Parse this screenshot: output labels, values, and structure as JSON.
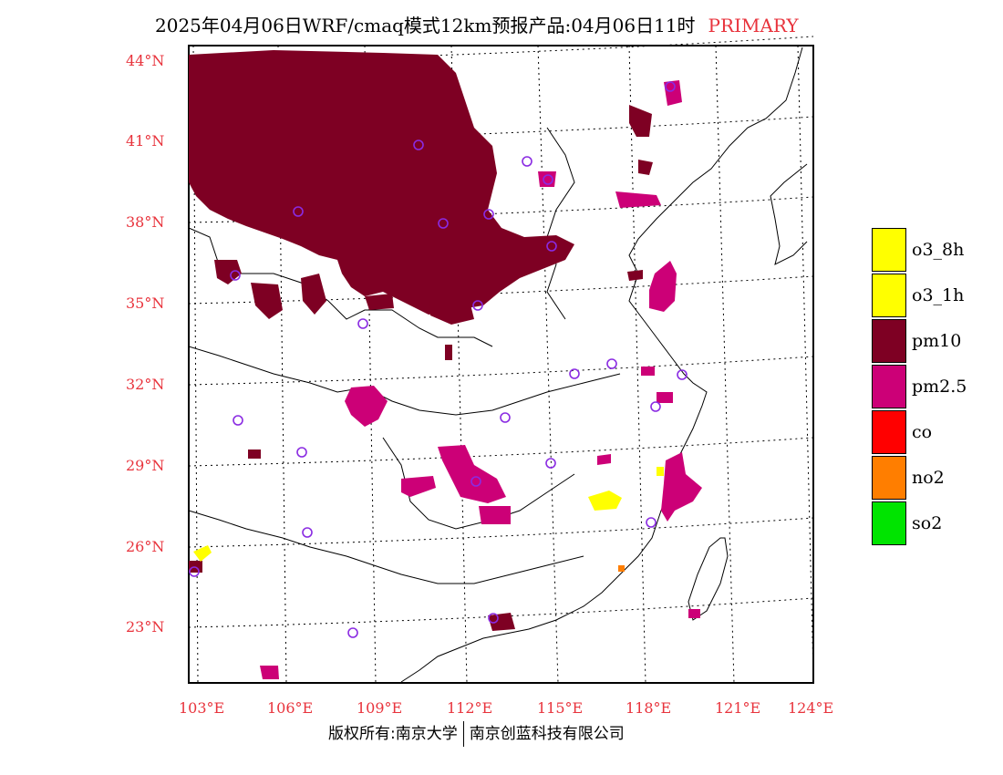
{
  "header": {
    "title": "2025年04月06日WRF/cmaq模式12km预报产品:04月06日11时",
    "mode": "PRIMARY"
  },
  "axes": {
    "lat_labels": [
      "44°N",
      "41°N",
      "38°N",
      "35°N",
      "32°N",
      "29°N",
      "26°N",
      "23°N"
    ],
    "lon_labels": [
      "103°E",
      "106°E",
      "109°E",
      "112°E",
      "115°E",
      "118°E",
      "121°E",
      "124°E"
    ]
  },
  "legend": [
    {
      "label": "o3_8h",
      "color": "#ffff00"
    },
    {
      "label": "o3_1h",
      "color": "#ffff00"
    },
    {
      "label": "pm10",
      "color": "#7e0023"
    },
    {
      "label": "pm2.5",
      "color": "#cc0077"
    },
    {
      "label": "co",
      "color": "#ff0000"
    },
    {
      "label": "no2",
      "color": "#ff7e00"
    },
    {
      "label": "so2",
      "color": "#00e400"
    }
  ],
  "footer": {
    "left": "版权所有:南京大学",
    "right": "南京创蓝科技有限公司"
  },
  "colors": {
    "pm10": "#7e0023",
    "pm25": "#cc0077",
    "o3": "#ffff00",
    "no2": "#ff7e00",
    "station": "#8a2be2",
    "axis_label": "#e8333c"
  }
}
